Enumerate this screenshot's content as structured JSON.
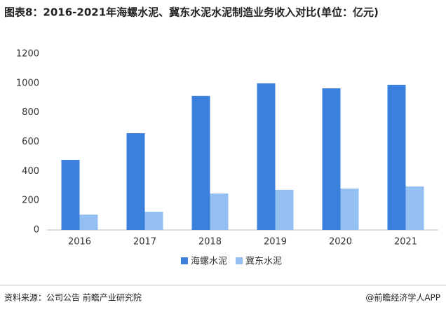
{
  "chart_data": {
    "type": "bar",
    "title": "图表8：2016-2021年海螺水泥、冀东水泥水泥制造业务收入对比(单位：亿元)",
    "categories": [
      "2016",
      "2017",
      "2018",
      "2019",
      "2020",
      "2021"
    ],
    "series": [
      {
        "name": "海螺水泥",
        "color": "#3b80dd",
        "values": [
          478,
          660,
          914,
          1000,
          966,
          990
        ]
      },
      {
        "name": "冀东水泥",
        "color": "#94bff1",
        "values": [
          105,
          124,
          249,
          273,
          282,
          297
        ]
      }
    ],
    "ylim": [
      0,
      1200
    ],
    "yticks": [
      0,
      200,
      400,
      600,
      800,
      1000,
      1200
    ],
    "grid": false,
    "legend": "bottom",
    "source": "资料来源：公司公告 前瞻产业研究院",
    "credit": "@前瞻经济学人APP"
  }
}
